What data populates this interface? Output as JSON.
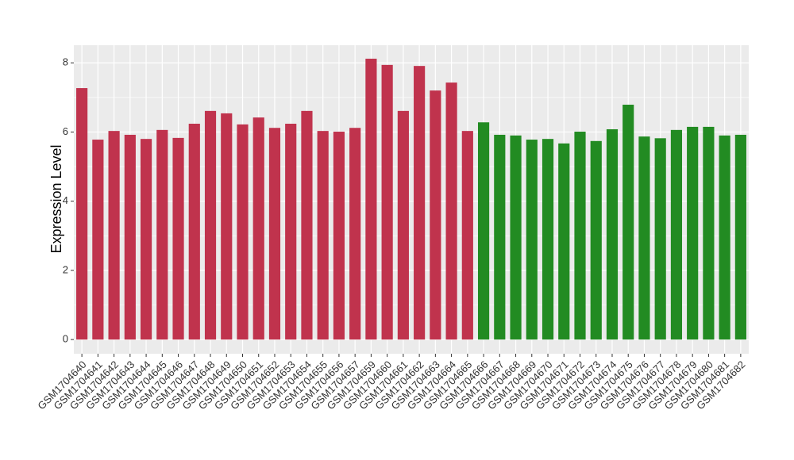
{
  "chart_data": {
    "type": "bar",
    "y_label": "Expression Level",
    "categories": [
      "GSM1704640",
      "GSM1704641",
      "GSM1704642",
      "GSM1704643",
      "GSM1704644",
      "GSM1704645",
      "GSM1704646",
      "GSM1704647",
      "GSM1704648",
      "GSM1704649",
      "GSM1704650",
      "GSM1704651",
      "GSM1704652",
      "GSM1704653",
      "GSM1704654",
      "GSM1704655",
      "GSM1704656",
      "GSM1704657",
      "GSM1704659",
      "GSM1704660",
      "GSM1704661",
      "GSM1704662",
      "GSM1704663",
      "GSM1704664",
      "GSM1704665",
      "GSM1704666",
      "GSM1704667",
      "GSM1704668",
      "GSM1704669",
      "GSM1704670",
      "GSM1704671",
      "GSM1704672",
      "GSM1704673",
      "GSM1704674",
      "GSM1704675",
      "GSM1704676",
      "GSM1704677",
      "GSM1704678",
      "GSM1704679",
      "GSM1704680",
      "GSM1704681",
      "GSM1704682"
    ],
    "values": [
      7.27,
      5.78,
      6.03,
      5.92,
      5.8,
      6.06,
      5.83,
      6.24,
      6.61,
      6.54,
      6.22,
      6.42,
      6.12,
      6.24,
      6.61,
      6.03,
      6.01,
      6.12,
      8.12,
      7.94,
      6.61,
      7.91,
      7.2,
      7.43,
      6.03,
      6.28,
      5.92,
      5.9,
      5.78,
      5.8,
      5.67,
      6.01,
      5.74,
      6.08,
      6.79,
      5.87,
      5.82,
      6.06,
      6.15,
      6.15,
      5.9,
      5.92
    ],
    "colors": [
      "#c0334d",
      "#c0334d",
      "#c0334d",
      "#c0334d",
      "#c0334d",
      "#c0334d",
      "#c0334d",
      "#c0334d",
      "#c0334d",
      "#c0334d",
      "#c0334d",
      "#c0334d",
      "#c0334d",
      "#c0334d",
      "#c0334d",
      "#c0334d",
      "#c0334d",
      "#c0334d",
      "#c0334d",
      "#c0334d",
      "#c0334d",
      "#c0334d",
      "#c0334d",
      "#c0334d",
      "#c0334d",
      "#228b22",
      "#228b22",
      "#228b22",
      "#228b22",
      "#228b22",
      "#228b22",
      "#228b22",
      "#228b22",
      "#228b22",
      "#228b22",
      "#228b22",
      "#228b22",
      "#228b22",
      "#228b22",
      "#228b22",
      "#228b22",
      "#228b22"
    ],
    "ylim": [
      -0.41,
      8.51
    ],
    "yticks": [
      0,
      2,
      4,
      6,
      8
    ],
    "grid": true
  }
}
